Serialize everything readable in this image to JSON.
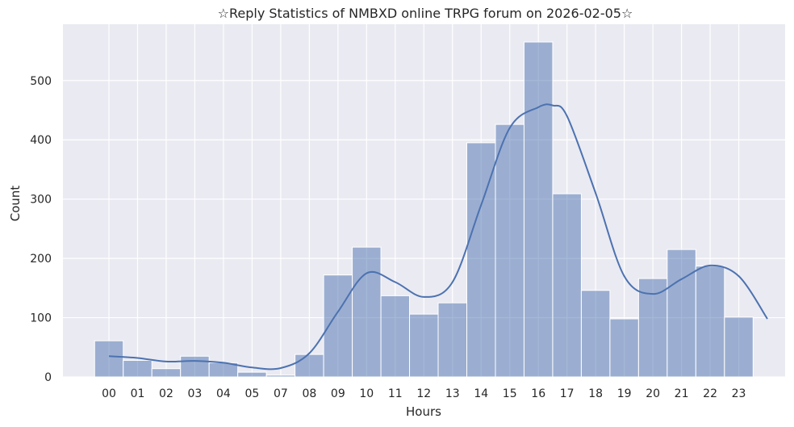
{
  "chart_data": {
    "type": "histogram",
    "title": "☆Reply Statistics of NMBXD online TRPG forum on 2026-02-05☆",
    "xlabel": "Hours",
    "ylabel": "Count",
    "ylim": [
      0,
      595
    ],
    "yticks": [
      0,
      100,
      200,
      300,
      400,
      500
    ],
    "grid": true,
    "categories": [
      "00",
      "01",
      "02",
      "03",
      "04",
      "05",
      "07",
      "08",
      "09",
      "10",
      "11",
      "12",
      "13",
      "14",
      "15",
      "16",
      "17",
      "18",
      "19",
      "20",
      "21",
      "22",
      "23"
    ],
    "values": [
      61,
      28,
      14,
      35,
      24,
      8,
      3,
      38,
      172,
      219,
      137,
      106,
      125,
      395,
      426,
      565,
      309,
      146,
      98,
      166,
      215,
      187,
      101
    ],
    "kde": {
      "x": [
        0,
        1,
        2,
        3,
        4,
        5,
        6,
        7,
        8,
        9,
        10,
        11,
        12,
        13,
        14,
        15,
        15.5,
        16,
        17,
        18,
        19,
        20,
        21,
        22,
        23
      ],
      "y": [
        35,
        32,
        26,
        27,
        24,
        16,
        15,
        40,
        110,
        175,
        160,
        135,
        160,
        290,
        420,
        455,
        458,
        440,
        310,
        170,
        140,
        165,
        188,
        170,
        98
      ]
    },
    "colors": {
      "bar": "#4c72b0",
      "line": "#4c72b0",
      "background": "#eaeaf2",
      "grid": "#ffffff"
    }
  }
}
